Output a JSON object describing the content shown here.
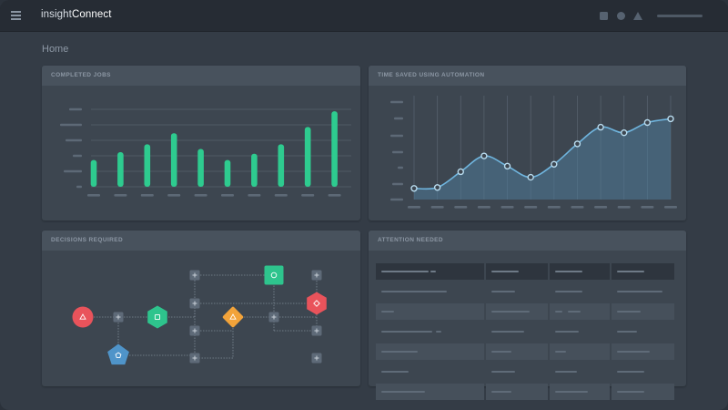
{
  "app": {
    "brand_part1": "insight",
    "brand_part2": "Connect",
    "top_icons": [
      "square-icon",
      "circle-icon",
      "triangle-icon"
    ],
    "accent_color": "#2ecb8f"
  },
  "page": {
    "title": "Home"
  },
  "panels": {
    "completed_jobs": {
      "title": "COMPLETED JOBS",
      "chart_data": {
        "type": "bar",
        "categories": [
          "",
          "",
          "",
          "",
          "",
          "",
          "",
          "",
          "",
          ""
        ],
        "values": [
          17,
          22,
          27,
          34,
          24,
          17,
          21,
          27,
          38,
          48
        ],
        "ylim": [
          0,
          55
        ],
        "grid": true,
        "color": "#2ecb8f"
      }
    },
    "time_saved": {
      "title": "TIME SAVED USING AUTOMATION",
      "chart_data": {
        "type": "area",
        "x": [
          0,
          1,
          2,
          3,
          4,
          5,
          6,
          7,
          8,
          9,
          10,
          11
        ],
        "values": [
          12,
          13,
          30,
          47,
          36,
          24,
          38,
          60,
          78,
          72,
          83,
          87
        ],
        "ylim": [
          0,
          110
        ],
        "grid": true,
        "color": "#6fb4dd"
      }
    },
    "decisions": {
      "title": "DECISIONS REQUIRED",
      "nodes": [
        {
          "shape": "circle",
          "color": "#e9535b",
          "icon": "triangle-icon"
        },
        {
          "shape": "hexagon",
          "color": "#2ec48d",
          "icon": "square-icon"
        },
        {
          "shape": "diamond",
          "color": "#f2a33a",
          "icon": "triangle-icon"
        },
        {
          "shape": "square",
          "color": "#2ec48d",
          "icon": "circle-icon"
        },
        {
          "shape": "hexagon",
          "color": "#e9535b",
          "icon": "diamond-icon"
        },
        {
          "shape": "pentagon",
          "color": "#4f94c9",
          "icon": "pentagon-icon"
        }
      ]
    },
    "attention": {
      "title": "ATTENTION NEEDED"
    }
  }
}
